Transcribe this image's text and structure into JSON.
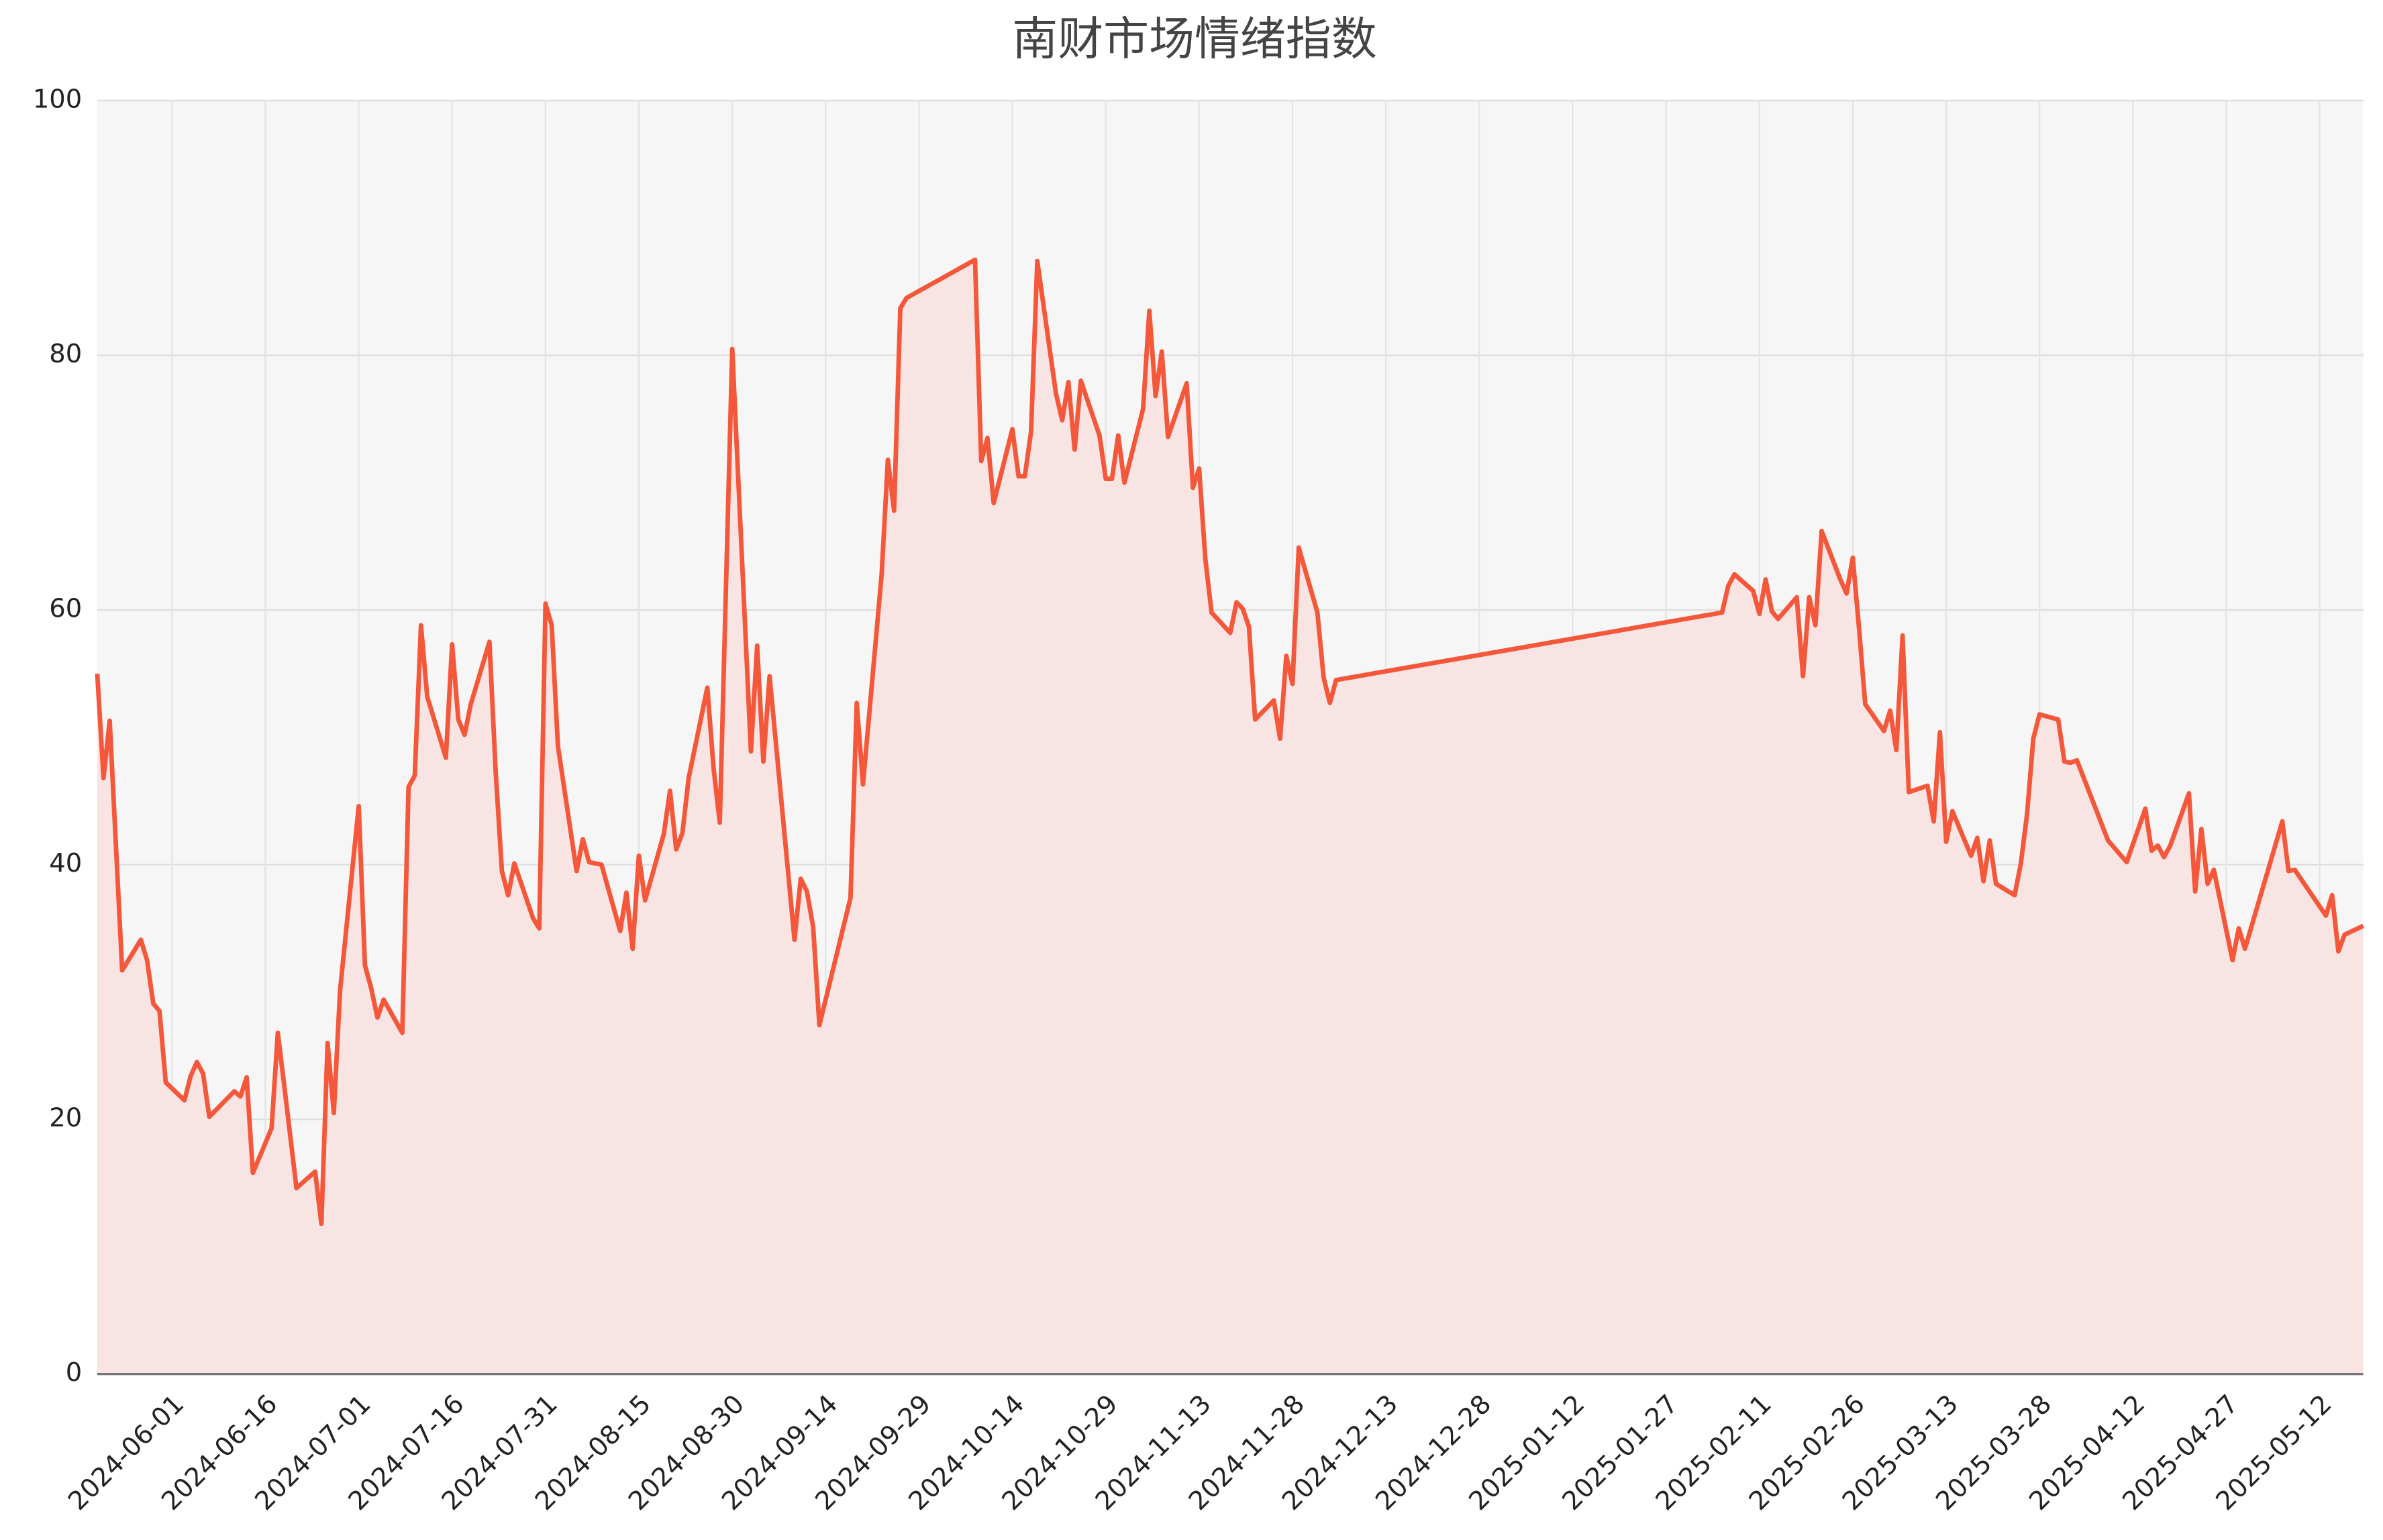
{
  "chart_data": {
    "type": "area-line",
    "title": "南财市场情绪指数",
    "x": [
      "2024-05-20",
      "2024-05-21",
      "2024-05-22",
      "2024-05-24",
      "2024-05-27",
      "2024-05-28",
      "2024-05-29",
      "2024-05-30",
      "2024-05-31",
      "2024-06-03",
      "2024-06-04",
      "2024-06-05",
      "2024-06-06",
      "2024-06-07",
      "2024-06-11",
      "2024-06-12",
      "2024-06-13",
      "2024-06-14",
      "2024-06-17",
      "2024-06-18",
      "2024-06-19",
      "2024-06-21",
      "2024-06-24",
      "2024-06-25",
      "2024-06-26",
      "2024-06-27",
      "2024-06-28",
      "2024-07-01",
      "2024-07-02",
      "2024-07-03",
      "2024-07-04",
      "2024-07-05",
      "2024-07-08",
      "2024-07-09",
      "2024-07-10",
      "2024-07-11",
      "2024-07-12",
      "2024-07-15",
      "2024-07-16",
      "2024-07-17",
      "2024-07-18",
      "2024-07-19",
      "2024-07-22",
      "2024-07-23",
      "2024-07-24",
      "2024-07-25",
      "2024-07-26",
      "2024-07-29",
      "2024-07-30",
      "2024-07-31",
      "2024-08-01",
      "2024-08-02",
      "2024-08-05",
      "2024-08-06",
      "2024-08-07",
      "2024-08-09",
      "2024-08-12",
      "2024-08-13",
      "2024-08-14",
      "2024-08-15",
      "2024-08-16",
      "2024-08-19",
      "2024-08-20",
      "2024-08-21",
      "2024-08-22",
      "2024-08-23",
      "2024-08-26",
      "2024-08-27",
      "2024-08-28",
      "2024-08-30",
      "2024-09-02",
      "2024-09-03",
      "2024-09-04",
      "2024-09-05",
      "2024-09-09",
      "2024-09-10",
      "2024-09-11",
      "2024-09-12",
      "2024-09-13",
      "2024-09-18",
      "2024-09-19",
      "2024-09-20",
      "2024-09-23",
      "2024-09-24",
      "2024-09-25",
      "2024-09-26",
      "2024-09-27",
      "2024-10-08",
      "2024-10-09",
      "2024-10-10",
      "2024-10-11",
      "2024-10-14",
      "2024-10-15",
      "2024-10-16",
      "2024-10-17",
      "2024-10-18",
      "2024-10-21",
      "2024-10-22",
      "2024-10-23",
      "2024-10-24",
      "2024-10-25",
      "2024-10-28",
      "2024-10-29",
      "2024-10-30",
      "2024-10-31",
      "2024-11-01",
      "2024-11-04",
      "2024-11-05",
      "2024-11-06",
      "2024-11-07",
      "2024-11-08",
      "2024-11-11",
      "2024-11-12",
      "2024-11-13",
      "2024-11-14",
      "2024-11-15",
      "2024-11-18",
      "2024-11-19",
      "2024-11-20",
      "2024-11-21",
      "2024-11-22",
      "2024-11-25",
      "2024-11-26",
      "2024-11-27",
      "2024-11-28",
      "2024-11-29",
      "2024-12-02",
      "2024-12-03",
      "2024-12-04",
      "2024-12-05",
      "2025-02-05",
      "2025-02-06",
      "2025-02-07",
      "2025-02-10",
      "2025-02-11",
      "2025-02-12",
      "2025-02-13",
      "2025-02-14",
      "2025-02-17",
      "2025-02-18",
      "2025-02-19",
      "2025-02-20",
      "2025-02-21",
      "2025-02-24",
      "2025-02-25",
      "2025-02-26",
      "2025-02-27",
      "2025-02-28",
      "2025-03-03",
      "2025-03-04",
      "2025-03-05",
      "2025-03-06",
      "2025-03-07",
      "2025-03-10",
      "2025-03-11",
      "2025-03-12",
      "2025-03-13",
      "2025-03-14",
      "2025-03-17",
      "2025-03-18",
      "2025-03-19",
      "2025-03-20",
      "2025-03-21",
      "2025-03-24",
      "2025-03-25",
      "2025-03-26",
      "2025-03-27",
      "2025-03-28",
      "2025-03-31",
      "2025-04-01",
      "2025-04-02",
      "2025-04-03",
      "2025-04-08",
      "2025-04-11",
      "2025-04-14",
      "2025-04-15",
      "2025-04-16",
      "2025-04-17",
      "2025-04-18",
      "2025-04-21",
      "2025-04-22",
      "2025-04-23",
      "2025-04-24",
      "2025-04-25",
      "2025-04-28",
      "2025-04-29",
      "2025-04-30",
      "2025-05-06",
      "2025-05-07",
      "2025-05-08",
      "2025-05-13",
      "2025-05-14",
      "2025-05-15",
      "2025-05-16",
      "2025-05-19"
    ],
    "values": [
      55.0,
      46.8,
      51.3,
      31.7,
      34.1,
      32.5,
      29.1,
      28.5,
      22.9,
      21.5,
      23.4,
      24.5,
      23.6,
      20.2,
      22.2,
      21.8,
      23.3,
      15.8,
      19.3,
      26.8,
      22.8,
      14.6,
      15.9,
      11.8,
      26.0,
      20.5,
      30.1,
      44.6,
      32.1,
      30.3,
      28.0,
      29.4,
      26.8,
      46.1,
      47.0,
      58.8,
      53.2,
      48.4,
      57.3,
      51.4,
      50.2,
      52.6,
      57.5,
      47.3,
      39.5,
      37.6,
      40.1,
      35.8,
      35.0,
      60.5,
      58.8,
      49.3,
      39.5,
      42.0,
      40.2,
      40.0,
      34.8,
      37.8,
      33.4,
      40.7,
      37.2,
      42.4,
      45.8,
      41.2,
      42.5,
      46.8,
      53.9,
      47.6,
      43.3,
      80.5,
      48.9,
      57.2,
      48.1,
      54.8,
      34.1,
      38.9,
      37.9,
      35.1,
      27.4,
      37.4,
      52.7,
      46.3,
      62.8,
      71.8,
      67.8,
      83.7,
      84.5,
      87.5,
      71.7,
      73.5,
      68.4,
      74.2,
      70.5,
      70.5,
      74.0,
      87.4,
      77.0,
      74.9,
      77.9,
      72.6,
      78.0,
      73.7,
      70.3,
      70.3,
      73.7,
      70.0,
      75.8,
      83.5,
      76.8,
      80.3,
      73.6,
      77.8,
      69.6,
      71.1,
      64.0,
      59.8,
      58.2,
      60.6,
      60.1,
      58.7,
      51.4,
      52.9,
      49.9,
      56.4,
      54.2,
      64.9,
      59.8,
      54.7,
      52.7,
      54.5,
      59.8,
      61.9,
      62.8,
      61.5,
      59.7,
      62.4,
      59.9,
      59.3,
      61.0,
      54.8,
      61.0,
      58.8,
      66.2,
      62.4,
      61.3,
      64.1,
      58.6,
      52.6,
      50.5,
      52.1,
      49.0,
      58.0,
      45.7,
      46.2,
      43.4,
      50.4,
      41.8,
      44.2,
      40.7,
      42.1,
      38.7,
      41.9,
      38.5,
      37.6,
      40.1,
      44.0,
      49.9,
      51.8,
      51.4,
      48.1,
      48.0,
      48.2,
      41.9,
      40.2,
      44.4,
      41.1,
      41.5,
      40.6,
      41.5,
      45.6,
      37.9,
      42.8,
      38.5,
      39.6,
      32.5,
      35.0,
      33.4,
      43.4,
      39.5,
      39.6,
      36.0,
      37.6,
      33.2,
      34.5,
      35.2
    ],
    "color": "#f4573a",
    "fill_color": "#f8e4e3",
    "background": "#f6f6f6",
    "xlim": [
      "2024-05-20",
      "2025-05-19"
    ],
    "xticks": [
      "2024-06-01",
      "2024-06-16",
      "2024-07-01",
      "2024-07-16",
      "2024-07-31",
      "2024-08-15",
      "2024-08-30",
      "2024-09-14",
      "2024-09-29",
      "2024-10-14",
      "2024-10-29",
      "2024-11-13",
      "2024-11-28",
      "2024-12-13",
      "2024-12-28",
      "2025-01-12",
      "2025-01-27",
      "2025-02-11",
      "2025-02-26",
      "2025-03-13",
      "2025-03-28",
      "2025-04-12",
      "2025-04-27",
      "2025-05-12"
    ],
    "ylim": [
      0,
      100
    ],
    "yticks": [
      0,
      20,
      40,
      60,
      80,
      100
    ],
    "grid": true
  }
}
